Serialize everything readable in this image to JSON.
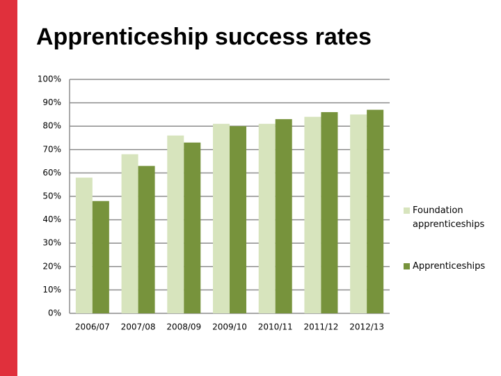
{
  "chart_data": {
    "type": "bar",
    "title": "Apprenticeship success rates",
    "categories": [
      "2006/07",
      "2007/08",
      "2008/09",
      "2009/10",
      "2010/11",
      "2011/12",
      "2012/13"
    ],
    "series": [
      {
        "name": "Foundation apprenticeships",
        "color": "#d7e4bd",
        "values": [
          58,
          68,
          76,
          81,
          81,
          84,
          85
        ]
      },
      {
        "name": "Apprenticeships",
        "color": "#77933c",
        "values": [
          48,
          63,
          73,
          80,
          83,
          86,
          87
        ]
      }
    ],
    "ylim": [
      0,
      100
    ],
    "yticks": [
      {
        "value": 0,
        "label": "0%"
      },
      {
        "value": 10,
        "label": "10%"
      },
      {
        "value": 20,
        "label": "20%"
      },
      {
        "value": 30,
        "label": "30%"
      },
      {
        "value": 40,
        "label": "40%"
      },
      {
        "value": 50,
        "label": "50%"
      },
      {
        "value": 60,
        "label": "60%"
      },
      {
        "value": 70,
        "label": "70%"
      },
      {
        "value": 80,
        "label": "80%"
      },
      {
        "value": 90,
        "label": "90%"
      },
      {
        "value": 100,
        "label": "100%"
      }
    ],
    "grid": true,
    "legend": "right"
  }
}
